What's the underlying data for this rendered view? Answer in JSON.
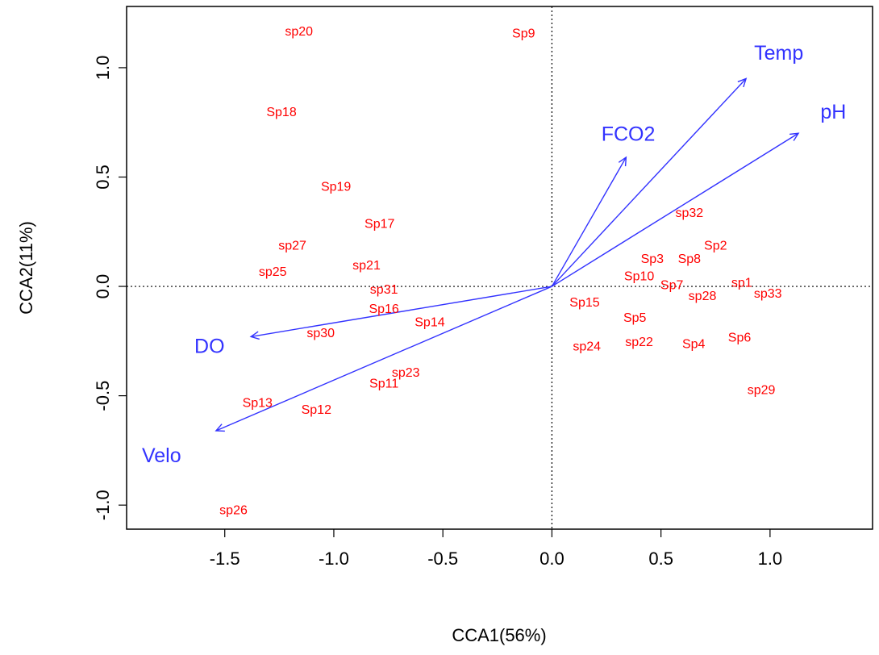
{
  "chart_data": {
    "type": "scatter",
    "xlabel": "CCA1(56%)",
    "ylabel": "CCA2(11%)",
    "xlim": [
      -1.95,
      1.47
    ],
    "ylim": [
      -1.11,
      1.28
    ],
    "x_ticks": [
      -1.5,
      -1.0,
      -0.5,
      0.0,
      0.5,
      1.0
    ],
    "x_tick_labels": [
      "-1.5",
      "-1.0",
      "-0.5",
      "0.0",
      "0.5",
      "1.0"
    ],
    "y_ticks": [
      -1.0,
      -0.5,
      0.0,
      0.5,
      1.0
    ],
    "y_tick_labels": [
      "-1.0",
      "-0.5",
      "0.0",
      "0.5",
      "1.0"
    ],
    "reference_lines": {
      "x": 0,
      "y": 0,
      "style": "dotted"
    },
    "colors": {
      "species": "#ff0000",
      "arrows": "#3333ff"
    },
    "species": [
      {
        "label": "sp20",
        "x": -1.16,
        "y": 1.17
      },
      {
        "label": "Sp9",
        "x": -0.13,
        "y": 1.16
      },
      {
        "label": "Sp18",
        "x": -1.24,
        "y": 0.8
      },
      {
        "label": "Sp19",
        "x": -0.99,
        "y": 0.46
      },
      {
        "label": "Sp17",
        "x": -0.79,
        "y": 0.29
      },
      {
        "label": "sp27",
        "x": -1.19,
        "y": 0.19
      },
      {
        "label": "sp25",
        "x": -1.28,
        "y": 0.07
      },
      {
        "label": "sp21",
        "x": -0.85,
        "y": 0.1
      },
      {
        "label": "sp31",
        "x": -0.77,
        "y": -0.01
      },
      {
        "label": "Sp16",
        "x": -0.77,
        "y": -0.1
      },
      {
        "label": "Sp14",
        "x": -0.56,
        "y": -0.16
      },
      {
        "label": "sp30",
        "x": -1.06,
        "y": -0.21
      },
      {
        "label": "sp23",
        "x": -0.67,
        "y": -0.39
      },
      {
        "label": "Sp11",
        "x": -0.77,
        "y": -0.44
      },
      {
        "label": "Sp13",
        "x": -1.35,
        "y": -0.53
      },
      {
        "label": "Sp12",
        "x": -1.08,
        "y": -0.56
      },
      {
        "label": "sp26",
        "x": -1.46,
        "y": -1.02
      },
      {
        "label": "sp32",
        "x": 0.63,
        "y": 0.34
      },
      {
        "label": "Sp2",
        "x": 0.75,
        "y": 0.19
      },
      {
        "label": "Sp3",
        "x": 0.46,
        "y": 0.13
      },
      {
        "label": "Sp8",
        "x": 0.63,
        "y": 0.13
      },
      {
        "label": "Sp10",
        "x": 0.4,
        "y": 0.05
      },
      {
        "label": "Sp7",
        "x": 0.55,
        "y": 0.01
      },
      {
        "label": "sp1",
        "x": 0.87,
        "y": 0.02
      },
      {
        "label": "Sp15",
        "x": 0.15,
        "y": -0.07
      },
      {
        "label": "sp28",
        "x": 0.69,
        "y": -0.04
      },
      {
        "label": "sp33",
        "x": 0.99,
        "y": -0.03
      },
      {
        "label": "Sp5",
        "x": 0.38,
        "y": -0.14
      },
      {
        "label": "sp24",
        "x": 0.16,
        "y": -0.27
      },
      {
        "label": "sp22",
        "x": 0.4,
        "y": -0.25
      },
      {
        "label": "Sp4",
        "x": 0.65,
        "y": -0.26
      },
      {
        "label": "Sp6",
        "x": 0.86,
        "y": -0.23
      },
      {
        "label": "sp29",
        "x": 0.96,
        "y": -0.47
      }
    ],
    "env_vectors": [
      {
        "label": "Temp",
        "x": 0.89,
        "y": 0.95,
        "label_x": 1.04,
        "label_y": 1.07
      },
      {
        "label": "pH",
        "x": 1.13,
        "y": 0.7,
        "label_x": 1.29,
        "label_y": 0.8
      },
      {
        "label": "FCO2",
        "x": 0.34,
        "y": 0.59,
        "label_x": 0.35,
        "label_y": 0.7
      },
      {
        "label": "DO",
        "x": -1.38,
        "y": -0.23,
        "label_x": -1.57,
        "label_y": -0.27
      },
      {
        "label": "Velo",
        "x": -1.54,
        "y": -0.66,
        "label_x": -1.79,
        "label_y": -0.77
      }
    ]
  }
}
